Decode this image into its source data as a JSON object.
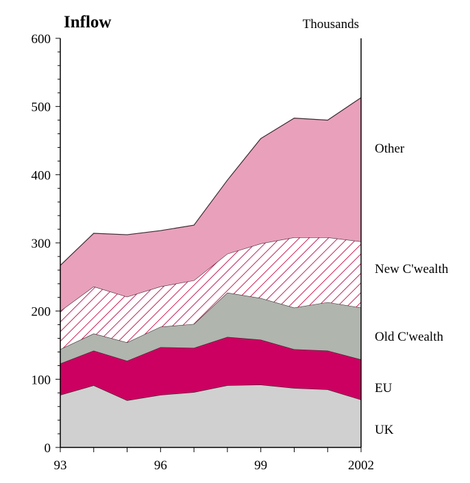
{
  "chart_data": {
    "type": "area",
    "stacked": true,
    "title": "Inflow",
    "units_label": "Thousands",
    "xlabel": "",
    "ylabel": "",
    "x": [
      1993,
      1994,
      1995,
      1996,
      1997,
      1998,
      1999,
      2000,
      2001,
      2002
    ],
    "x_tick_labels": [
      {
        "x": 1993,
        "label": "93"
      },
      {
        "x": 1996,
        "label": "96"
      },
      {
        "x": 1999,
        "label": "99"
      },
      {
        "x": 2002,
        "label": "2002"
      }
    ],
    "ylim": [
      0,
      600
    ],
    "y_ticks": [
      0,
      100,
      200,
      300,
      400,
      500,
      600
    ],
    "y_tick_labels": [
      "0",
      "100",
      "200",
      "300",
      "400",
      "500",
      "600"
    ],
    "grid": false,
    "series": [
      {
        "name": "UK",
        "color": "#d0d0d0",
        "pattern": "solid",
        "values": [
          77,
          91,
          69,
          77,
          81,
          91,
          92,
          87,
          85,
          70
        ]
      },
      {
        "name": "EU",
        "color": "#cc0060",
        "pattern": "solid",
        "values": [
          46,
          51,
          58,
          70,
          65,
          71,
          66,
          57,
          57,
          59
        ]
      },
      {
        "name": "Old C'wealth",
        "color": "#b0b5ae",
        "pattern": "solid",
        "values": [
          21,
          25,
          27,
          30,
          35,
          65,
          61,
          61,
          71,
          76
        ]
      },
      {
        "name": "New C'wealth",
        "color": "#c8205a",
        "pattern": "hatch",
        "values": [
          56,
          69,
          67,
          59,
          64,
          57,
          80,
          103,
          95,
          97
        ]
      },
      {
        "name": "Other",
        "color": "#e9a0bb",
        "pattern": "solid",
        "values": [
          67,
          78,
          91,
          82,
          81,
          108,
          154,
          175,
          172,
          211
        ]
      }
    ],
    "legend_placement": "right (direct labels)"
  }
}
